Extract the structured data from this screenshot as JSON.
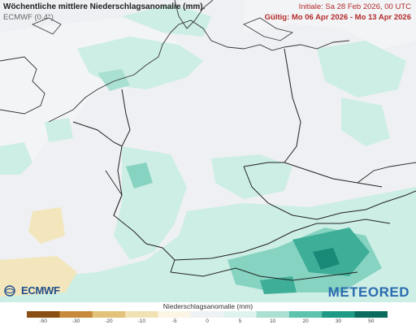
{
  "header": {
    "title": "Wöchentliche mittlere Niederschlagsanomalie (mm).",
    "model": "ECMWF (0.4°)",
    "initiale": "Initiale:  Sa 28 Feb 2026, 00 UTC",
    "valid": "Gültig: Mo 06 Apr 2026 - Mo 13 Apr 2026"
  },
  "logos": {
    "ecmwf": "ECMWF",
    "meteored": "METEORED"
  },
  "legend": {
    "title": "Niederschlagsanomalie (mm)",
    "ticks": [
      "-50",
      "-30",
      "-20",
      "-10",
      "-5",
      "0",
      "5",
      "10",
      "20",
      "30",
      "50"
    ],
    "colors": [
      "#8a4f12",
      "#c68a3a",
      "#e2c17a",
      "#f1e2b4",
      "#fbf5e6",
      "#eef2f5",
      "#dff3ee",
      "#a9e0d2",
      "#5ec3ad",
      "#1e9a86",
      "#0b6b5c"
    ]
  },
  "map": {
    "colors": {
      "background": "#eef0f3",
      "wet_light": "#cdeee4",
      "wet_mid": "#86d3c1",
      "wet_strong": "#3fae98",
      "wet_dark": "#1a8a78",
      "dry_light": "#f3e6bd",
      "border": "#222222",
      "coast": "#333333"
    }
  }
}
